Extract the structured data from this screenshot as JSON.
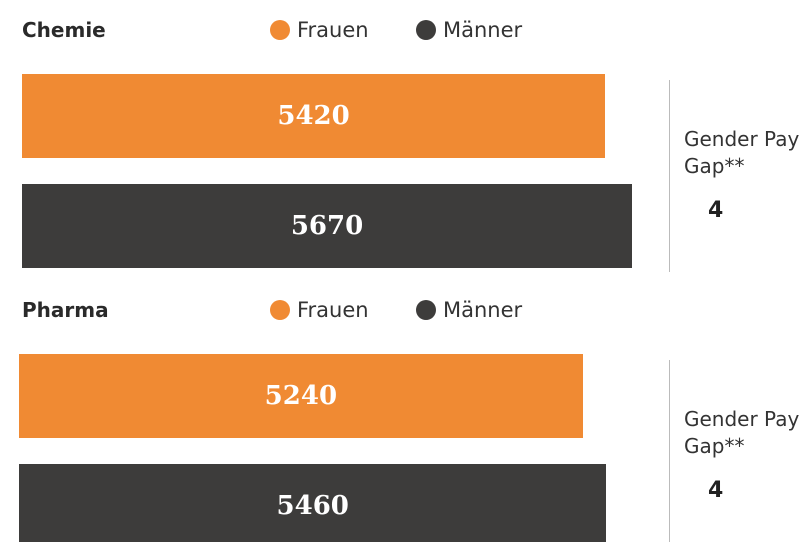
{
  "chart_data": [
    {
      "type": "bar",
      "title": "Chemie",
      "series": [
        {
          "name": "Frauen",
          "color": "#f08a33",
          "values": [
            5420
          ]
        },
        {
          "name": "Männer",
          "color": "#3d3c3b",
          "values": [
            5670
          ]
        }
      ],
      "annotation": {
        "label": "Gender Pay Gap**",
        "value": 4
      }
    },
    {
      "type": "bar",
      "title": "Pharma",
      "series": [
        {
          "name": "Frauen",
          "color": "#f08a33",
          "values": [
            5240
          ]
        },
        {
          "name": "Männer",
          "color": "#3d3c3b",
          "values": [
            5460
          ]
        }
      ],
      "annotation": {
        "label": "Gender Pay Gap**",
        "value": 4
      }
    }
  ]
}
